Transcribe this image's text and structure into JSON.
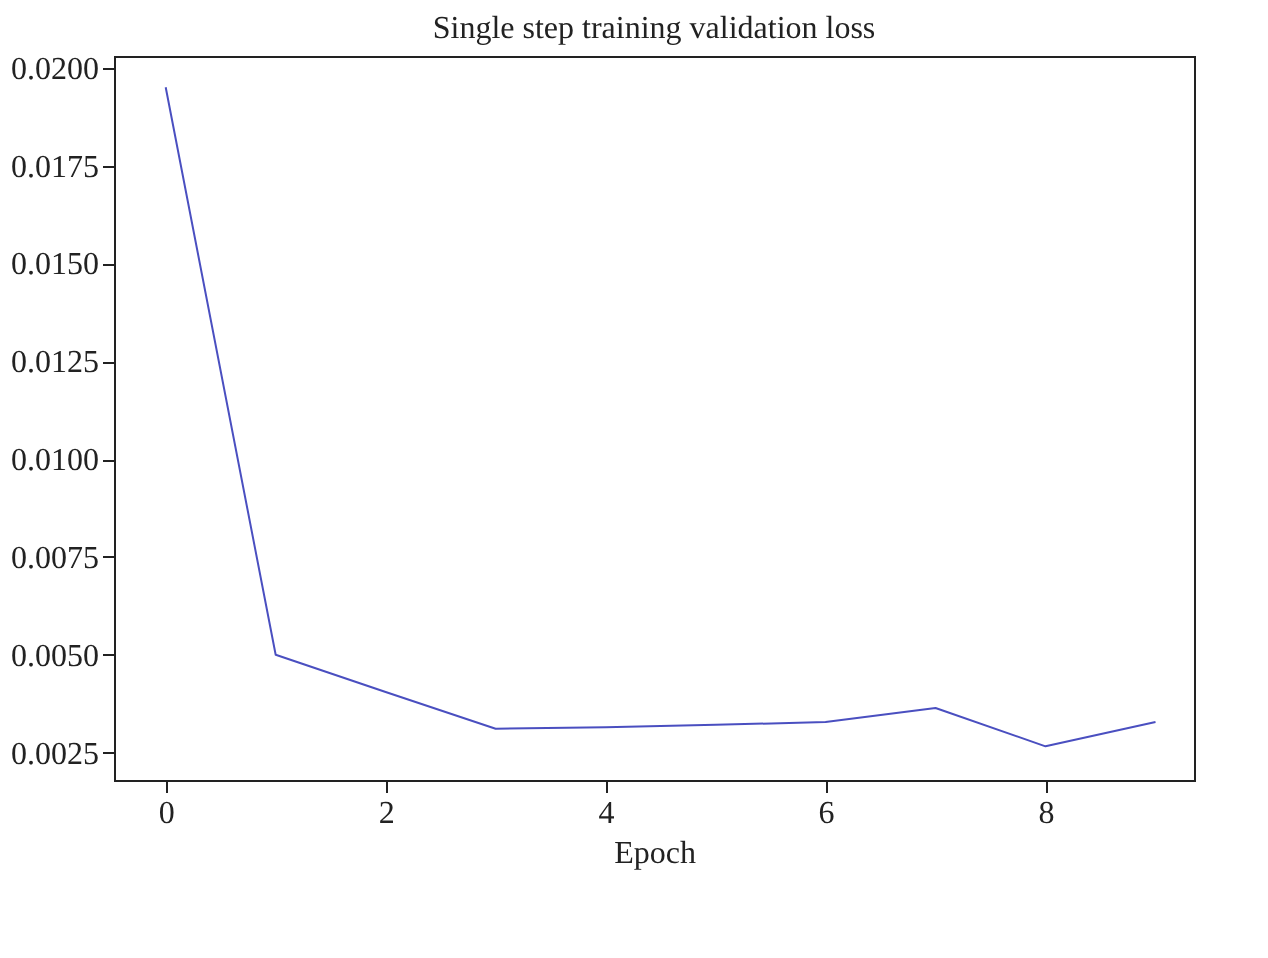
{
  "chart_data": {
    "type": "line",
    "title": "Single step training validation loss",
    "xlabel": "Epoch",
    "x": [
      0,
      1,
      2,
      3,
      4,
      5,
      6,
      7,
      8,
      9
    ],
    "series": [
      {
        "color": "#4a4fc0",
        "values": [
          0.0195,
          0.005,
          0.00405,
          0.00311,
          0.00315,
          0.00321,
          0.00328,
          0.00364,
          0.00266,
          0.00328
        ]
      }
    ],
    "xlim": [
      -0.47,
      9.35
    ],
    "xticks": [
      0,
      2,
      4,
      6,
      8
    ],
    "ylim": [
      0.0018,
      0.0203
    ],
    "yticks": [
      {
        "value": 0.0025,
        "label": "0.0025"
      },
      {
        "value": 0.005,
        "label": "0.0050"
      },
      {
        "value": 0.0075,
        "label": "0.0075"
      },
      {
        "value": 0.01,
        "label": "0.0100"
      },
      {
        "value": 0.0125,
        "label": "0.0125"
      },
      {
        "value": 0.015,
        "label": "0.0150"
      },
      {
        "value": 0.0175,
        "label": "0.0175"
      },
      {
        "value": 0.02,
        "label": "0.0200"
      }
    ],
    "grid": false,
    "marker": "none",
    "line_style": "solid"
  }
}
